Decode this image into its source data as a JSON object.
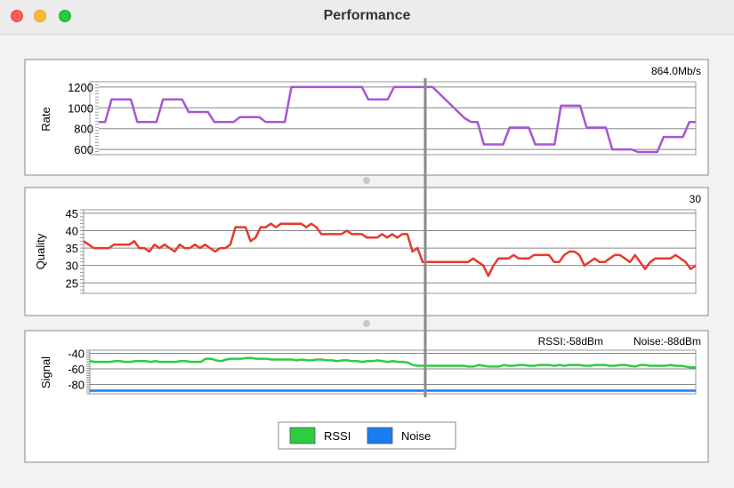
{
  "window": {
    "title": "Performance"
  },
  "colors": {
    "rate": "#a855d6",
    "quality": "#e63a2e",
    "rssi": "#2ecc40",
    "noise": "#1a7cf0"
  },
  "chart_data": [
    {
      "type": "line",
      "ylabel": "Rate",
      "readout": "864.0Mb/s",
      "yticks": [
        600,
        800,
        1000,
        1200
      ],
      "ylim": [
        550,
        1250
      ],
      "series": [
        {
          "name": "Rate",
          "values": [
            864,
            864,
            1080,
            1080,
            1080,
            1080,
            864,
            864,
            864,
            864,
            1080,
            1080,
            1080,
            1080,
            960,
            960,
            960,
            960,
            864,
            864,
            864,
            864,
            910,
            910,
            910,
            910,
            864,
            864,
            864,
            864,
            1200,
            1200,
            1200,
            1200,
            1200,
            1200,
            1200,
            1200,
            1200,
            1200,
            1200,
            1200,
            1080,
            1080,
            1080,
            1080,
            1200,
            1200,
            1200,
            1200,
            1200,
            1200,
            1200,
            1140,
            1080,
            1020,
            960,
            900,
            864,
            864,
            648,
            648,
            648,
            648,
            810,
            810,
            810,
            810,
            648,
            648,
            648,
            648,
            1020,
            1020,
            1020,
            1020,
            810,
            810,
            810,
            810,
            600,
            600,
            600,
            600,
            576,
            576,
            576,
            576,
            720,
            720,
            720,
            720,
            864,
            864
          ]
        }
      ]
    },
    {
      "type": "line",
      "ylabel": "Quality",
      "readout": "30",
      "yticks": [
        25,
        30,
        35,
        40,
        45
      ],
      "ylim": [
        22,
        46
      ],
      "series": [
        {
          "name": "Quality",
          "values": [
            37,
            36,
            35,
            35,
            35,
            35,
            36,
            36,
            36,
            36,
            37,
            35,
            35,
            34,
            36,
            35,
            36,
            35,
            34,
            36,
            35,
            35,
            36,
            35,
            36,
            35,
            34,
            35,
            35,
            36,
            41,
            41,
            41,
            37,
            38,
            41,
            41,
            42,
            41,
            42,
            42,
            42,
            42,
            42,
            41,
            42,
            41,
            39,
            39,
            39,
            39,
            39,
            40,
            39,
            39,
            39,
            38,
            38,
            38,
            39,
            38,
            39,
            38,
            39,
            39,
            34,
            35,
            31,
            31,
            31,
            31,
            31,
            31,
            31,
            31,
            31,
            31,
            32,
            31,
            30,
            27,
            30,
            32,
            32,
            32,
            33,
            32,
            32,
            32,
            33,
            33,
            33,
            33,
            31,
            31,
            33,
            34,
            34,
            33,
            30,
            31,
            32,
            31,
            31,
            32,
            33,
            33,
            32,
            31,
            33,
            31,
            29,
            31,
            32,
            32,
            32,
            32,
            33,
            32,
            31,
            29,
            30
          ]
        }
      ]
    },
    {
      "type": "line",
      "ylabel": "Signal",
      "readout_rssi": "RSSI:-58dBm",
      "readout_noise": "Noise:-88dBm",
      "yticks": [
        -40,
        -60,
        -80
      ],
      "ylim": [
        -92,
        -36
      ],
      "series": [
        {
          "name": "RSSI",
          "values": [
            -50,
            -51,
            -51,
            -51,
            -51,
            -50,
            -50,
            -51,
            -51,
            -50,
            -50,
            -50,
            -51,
            -50,
            -51,
            -51,
            -51,
            -51,
            -50,
            -50,
            -51,
            -51,
            -51,
            -47,
            -47,
            -49,
            -50,
            -48,
            -47,
            -47,
            -47,
            -46,
            -46,
            -47,
            -47,
            -47,
            -48,
            -48,
            -48,
            -48,
            -48,
            -49,
            -48,
            -49,
            -49,
            -48,
            -48,
            -49,
            -49,
            -50,
            -49,
            -49,
            -50,
            -50,
            -51,
            -50,
            -50,
            -49,
            -50,
            -51,
            -50,
            -51,
            -51,
            -52,
            -55,
            -56,
            -56,
            -56,
            -56,
            -56,
            -56,
            -56,
            -56,
            -56,
            -56,
            -57,
            -57,
            -55,
            -56,
            -57,
            -57,
            -57,
            -55,
            -56,
            -56,
            -55,
            -55,
            -56,
            -56,
            -55,
            -55,
            -55,
            -56,
            -55,
            -56,
            -55,
            -55,
            -55,
            -56,
            -56,
            -55,
            -55,
            -55,
            -56,
            -56,
            -55,
            -55,
            -56,
            -57,
            -55,
            -55,
            -56,
            -56,
            -56,
            -56,
            -55,
            -56,
            -56,
            -57,
            -58,
            -58
          ]
        },
        {
          "name": "Noise",
          "values": [
            -88,
            -88,
            -88,
            -88,
            -88,
            -88,
            -88,
            -88,
            -88,
            -88,
            -88,
            -88,
            -88,
            -88,
            -88,
            -88,
            -88,
            -88,
            -88,
            -88,
            -88,
            -88
          ]
        }
      ]
    }
  ],
  "legend": {
    "rssi_label": "RSSI",
    "noise_label": "Noise"
  }
}
